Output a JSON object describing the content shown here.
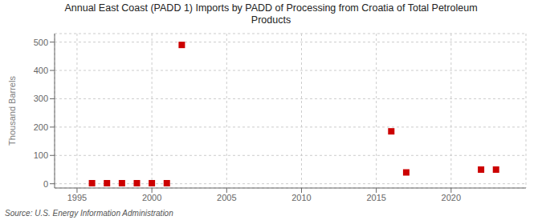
{
  "chart_data": {
    "type": "scatter",
    "title": "Annual East Coast (PADD 1) Imports by PADD of Processing from Croatia of Total Petroleum\nProducts",
    "ylabel": "Thousand Barrels",
    "source": "Source: U.S. Energy Information Administration",
    "x": [
      1996,
      1997,
      1998,
      1999,
      2000,
      2001,
      2002,
      2016,
      2017,
      2022,
      2023
    ],
    "values": [
      2,
      2,
      2,
      2,
      2,
      2,
      490,
      185,
      40,
      50,
      50
    ],
    "color": "#cc0000",
    "marker": "square",
    "xlim": [
      1993.5,
      2025
    ],
    "ylim": [
      -15,
      530
    ],
    "xticks": [
      1995,
      2000,
      2005,
      2010,
      2015,
      2020
    ],
    "yticks": [
      0,
      100,
      200,
      300,
      400,
      500
    ],
    "grid": true
  }
}
